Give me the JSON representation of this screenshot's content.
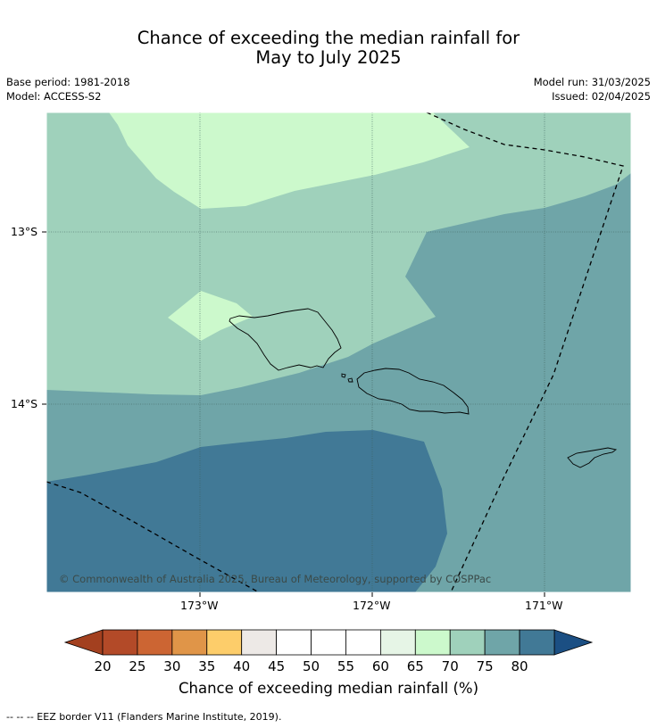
{
  "title": {
    "line1": "Chance of exceeding the median rainfall for",
    "line2": "May to July 2025"
  },
  "meta": {
    "base_period": "Base period: 1981-2018",
    "model": "Model: ACCESS-S2",
    "model_run": "Model run: 31/03/2025",
    "issued": "Issued: 02/04/2025"
  },
  "map": {
    "copyright": "© Commonwealth of Australia 2025, Bureau of Meteorology, supported by COSPPac",
    "lat_labels": [
      "13°S",
      "14°S"
    ],
    "lon_labels": [
      "173°W",
      "172°W",
      "171°W"
    ]
  },
  "colorbar": {
    "ticks": [
      "20",
      "25",
      "30",
      "35",
      "40",
      "45",
      "50",
      "55",
      "60",
      "65",
      "70",
      "75",
      "80"
    ],
    "colors": [
      "#b34a28",
      "#cc6533",
      "#e09548",
      "#fdcd6a",
      "#ede9e6",
      "#ffffff",
      "#ffffff",
      "#ffffff",
      "#e6f5e6",
      "#ccf9cc",
      "#9fd1bb",
      "#6fa5a8",
      "#417996"
    ],
    "under_color": "#a3401f",
    "over_color": "#1b4f83",
    "label": "Chance of exceeding median rainfall (%)"
  },
  "zone_colors": {
    "65-70": "#ccf9cc",
    "70-75": "#9fd1bb",
    "75-80": "#6fa5a8",
    "80+": "#417996"
  },
  "footnote": "--  --  -- EEZ border V11 (Flanders Marine Institute, 2019)."
}
